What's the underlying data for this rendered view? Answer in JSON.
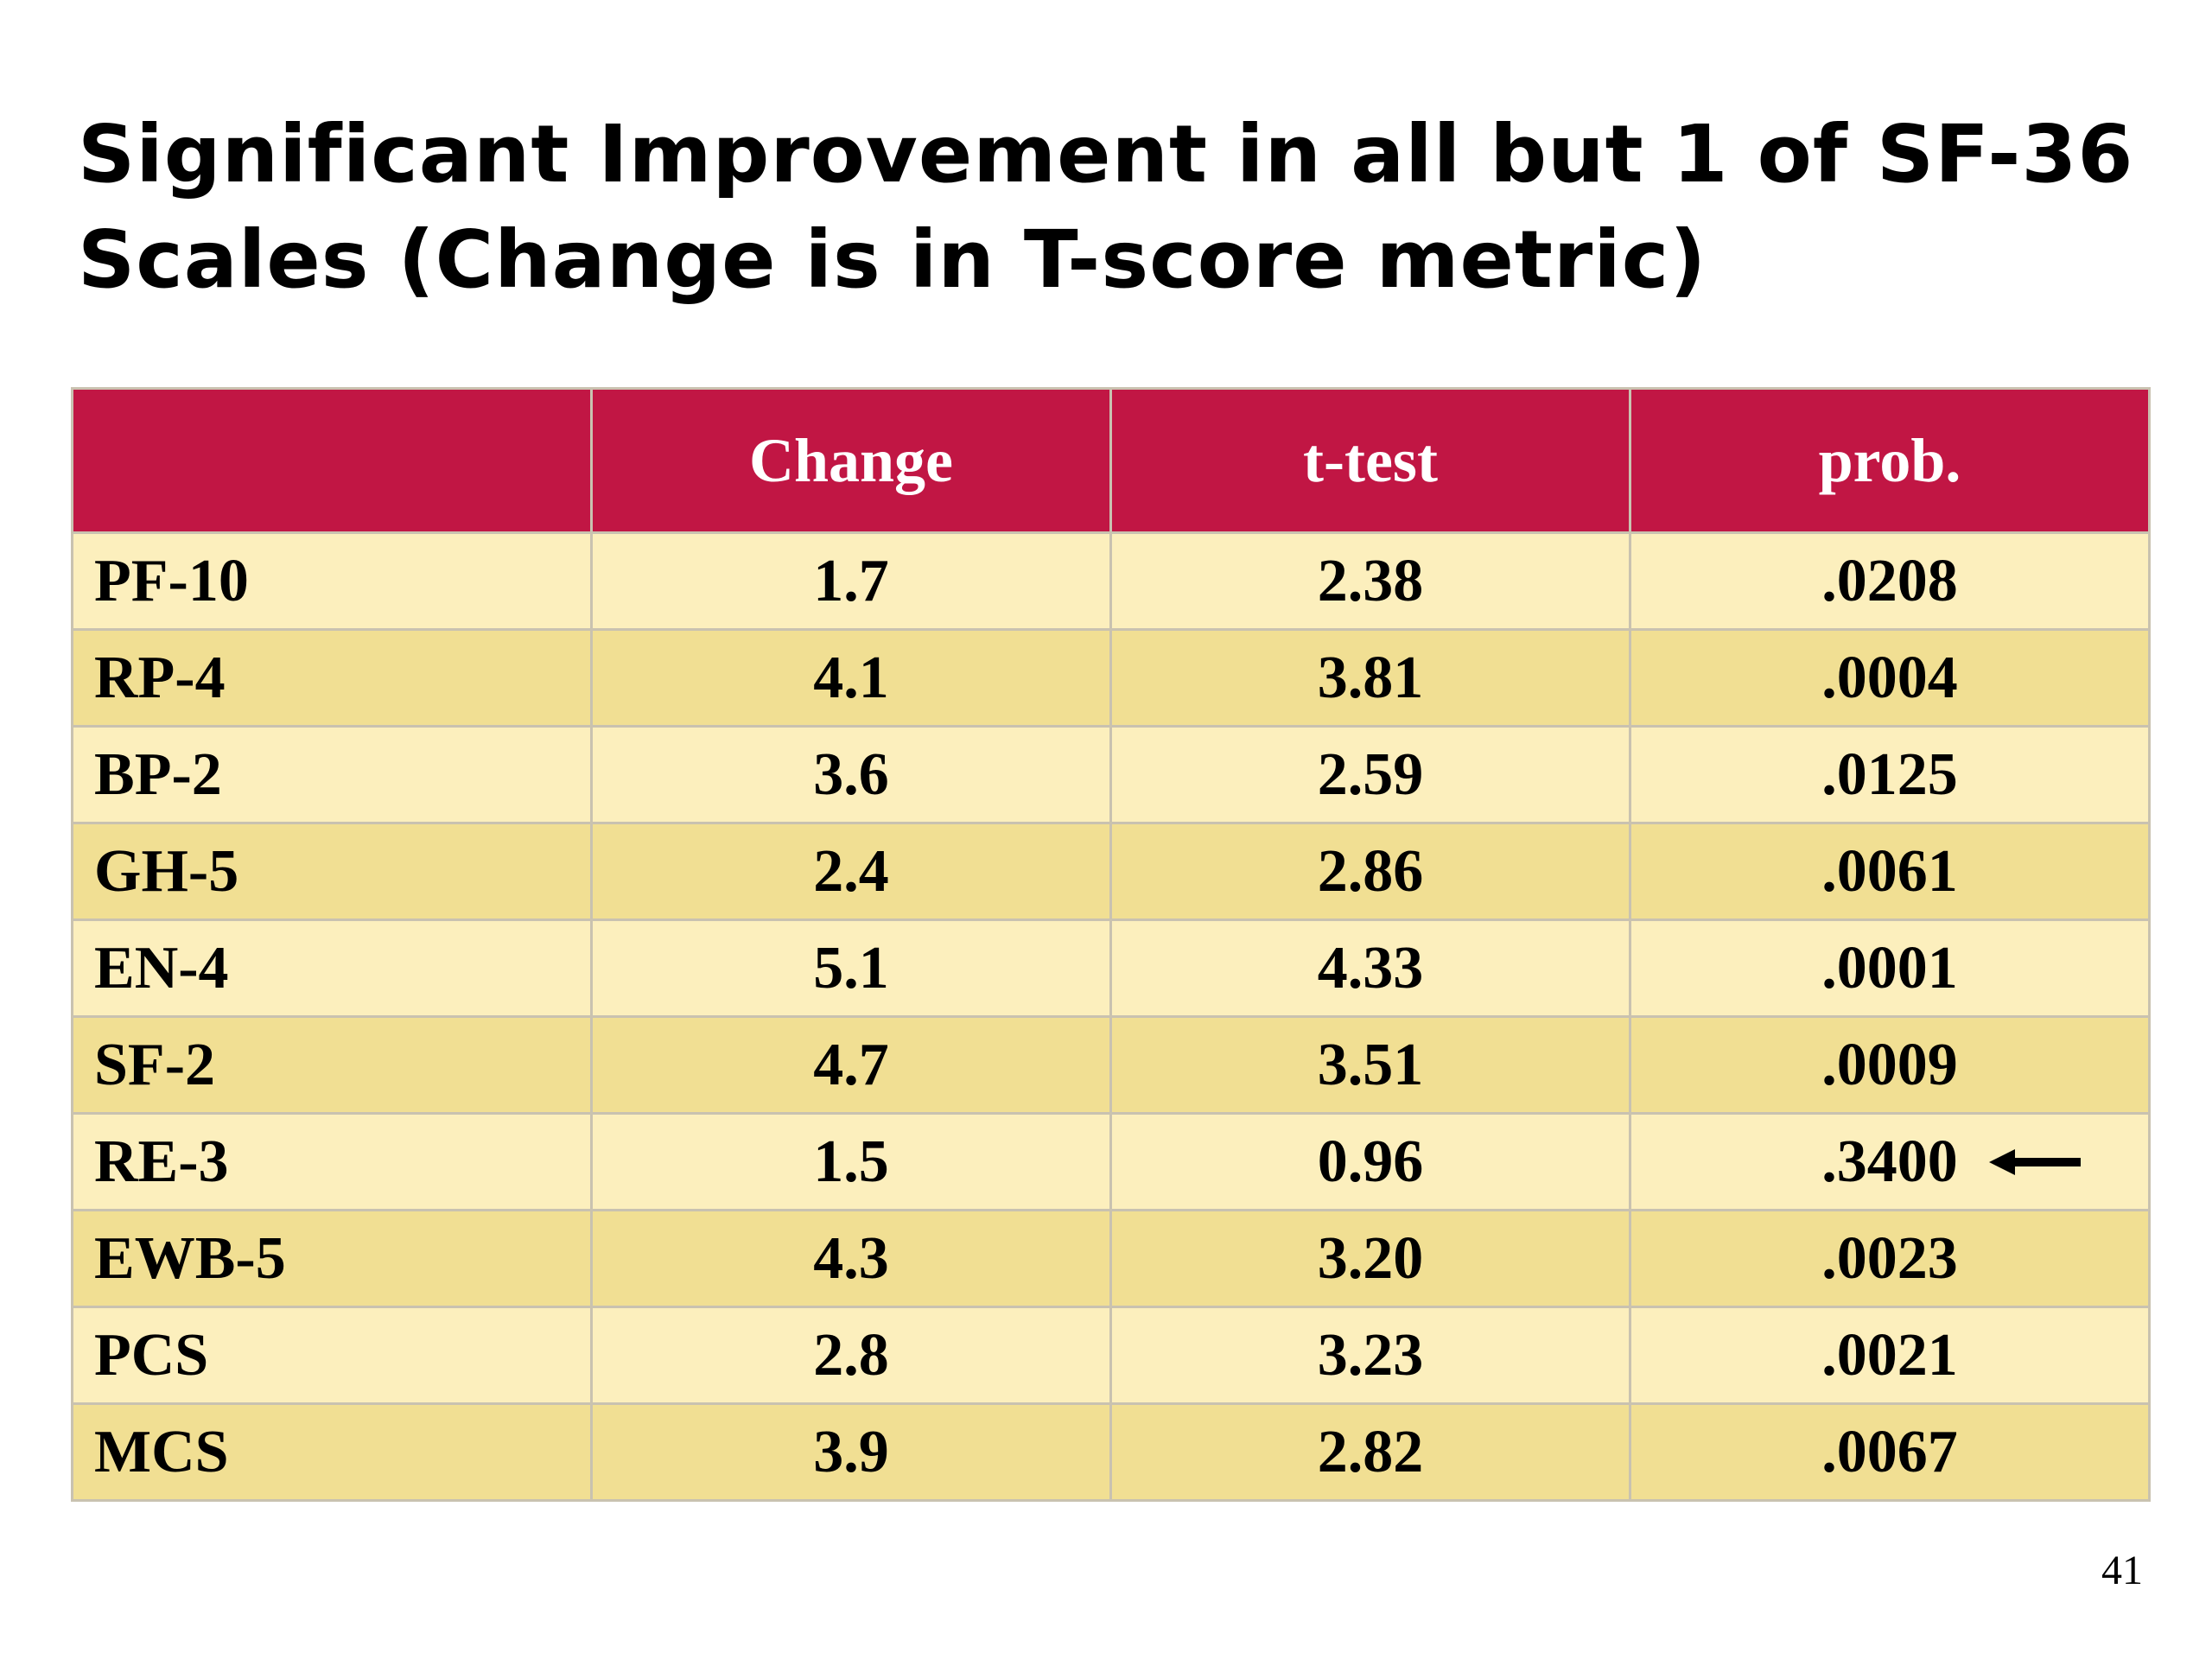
{
  "title": {
    "line1": "Significant Improvement in all but 1 of SF-36",
    "line2": "Scales (Change is in T-score metric)"
  },
  "table": {
    "headers": [
      "",
      "Change",
      "t-test",
      "prob."
    ],
    "rows": [
      [
        "PF-10",
        "1.7",
        "2.38",
        ".0208"
      ],
      [
        "RP-4",
        "4.1",
        "3.81",
        ".0004"
      ],
      [
        "BP-2",
        "3.6",
        "2.59",
        ".0125"
      ],
      [
        "GH-5",
        "2.4",
        "2.86",
        ".0061"
      ],
      [
        "EN-4",
        "5.1",
        "4.33",
        ".0001"
      ],
      [
        "SF-2",
        "4.7",
        "3.51",
        ".0009"
      ],
      [
        "RE-3",
        "1.5",
        "0.96",
        ".3400"
      ],
      [
        "EWB-5",
        "4.3",
        "3.20",
        ".0023"
      ],
      [
        "PCS",
        "2.8",
        "3.23",
        ".0021"
      ],
      [
        "MCS",
        "3.9",
        "2.82",
        ".0067"
      ]
    ],
    "highlighted_row_marker": "left-arrow-icon"
  },
  "colors": {
    "header_bg": "#c11644",
    "header_text": "#ffffff",
    "row_light": "#fcefbd",
    "row_dark": "#f1df93"
  },
  "page_number": "41"
}
